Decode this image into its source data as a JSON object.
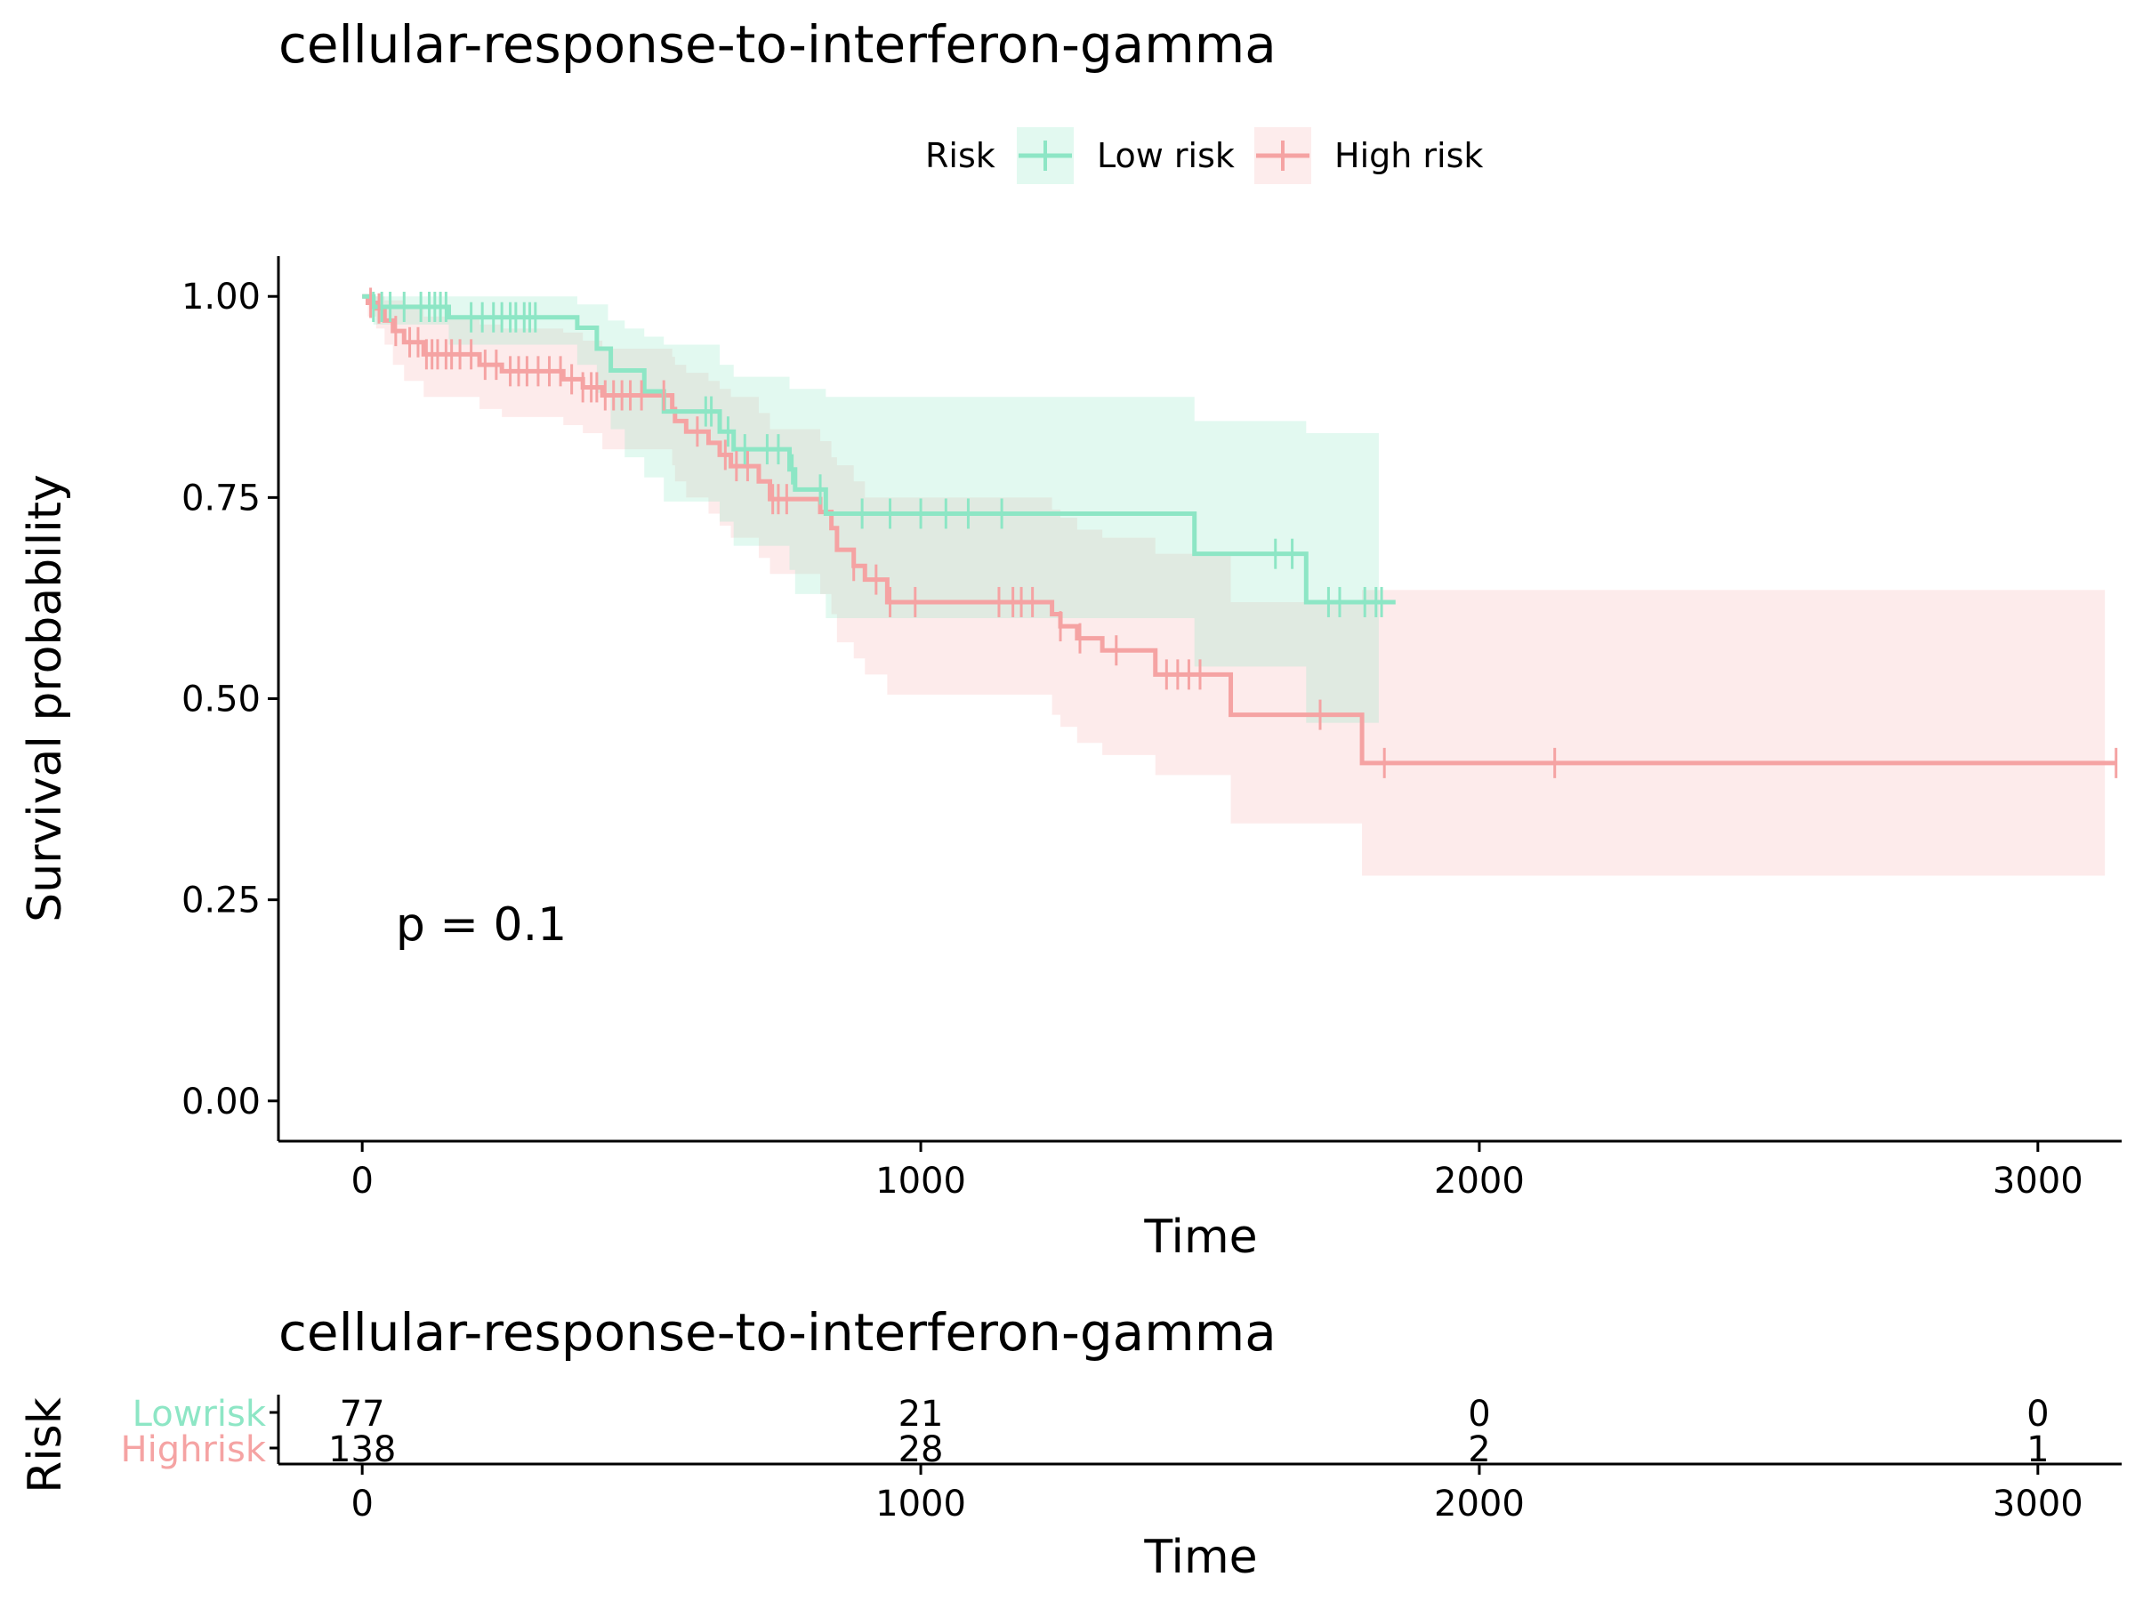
{
  "chart_data": [
    {
      "type": "line",
      "subtype": "kaplan-meier",
      "title": "cellular-response-to-interferon-gamma",
      "xlabel": "Time",
      "ylabel": "Survival probability",
      "xlim": [
        -150,
        3150
      ],
      "ylim": [
        -0.05,
        1.05
      ],
      "xticks": [
        0,
        1000,
        2000,
        3000
      ],
      "yticks": [
        "0.00",
        "0.25",
        "0.50",
        "0.75",
        "1.00"
      ],
      "grid": false,
      "legend": {
        "title": "Risk",
        "placement": "top",
        "entries": [
          "Low risk",
          "High risk"
        ]
      },
      "annotation": "p = 0.1",
      "annotation_pos": [
        60,
        0.2
      ],
      "series": [
        {
          "name": "Low risk",
          "color": "#8DE6C5",
          "band_color": "#8DE6C5",
          "steps": [
            [
              0,
              1.0
            ],
            [
              20,
              0.987
            ],
            [
              155,
              0.974
            ],
            [
              385,
              0.961
            ],
            [
              420,
              0.935
            ],
            [
              445,
              0.908
            ],
            [
              505,
              0.882
            ],
            [
              540,
              0.857
            ],
            [
              640,
              0.832
            ],
            [
              665,
              0.81
            ],
            [
              765,
              0.785
            ],
            [
              775,
              0.76
            ],
            [
              830,
              0.73
            ],
            [
              1490,
              0.68
            ],
            [
              1690,
              0.62
            ],
            [
              1850,
              0.62
            ]
          ],
          "lower": [
            [
              0,
              1.0
            ],
            [
              20,
              0.965
            ],
            [
              155,
              0.94
            ],
            [
              385,
              0.915
            ],
            [
              420,
              0.88
            ],
            [
              445,
              0.835
            ],
            [
              470,
              0.8
            ],
            [
              505,
              0.775
            ],
            [
              540,
              0.745
            ],
            [
              640,
              0.72
            ],
            [
              665,
              0.69
            ],
            [
              765,
              0.66
            ],
            [
              775,
              0.63
            ],
            [
              830,
              0.6
            ],
            [
              1490,
              0.54
            ],
            [
              1690,
              0.47
            ],
            [
              1820,
              0.47
            ]
          ],
          "upper": [
            [
              0,
              1.0
            ],
            [
              155,
              1.0
            ],
            [
              385,
              0.99
            ],
            [
              440,
              0.97
            ],
            [
              470,
              0.96
            ],
            [
              505,
              0.95
            ],
            [
              540,
              0.94
            ],
            [
              640,
              0.915
            ],
            [
              665,
              0.9
            ],
            [
              765,
              0.885
            ],
            [
              830,
              0.875
            ],
            [
              1490,
              0.845
            ],
            [
              1690,
              0.83
            ],
            [
              1820,
              0.83
            ]
          ],
          "censor_times": [
            20,
            35,
            50,
            75,
            105,
            120,
            130,
            140,
            150,
            195,
            215,
            235,
            250,
            265,
            275,
            290,
            300,
            310,
            615,
            625,
            655,
            685,
            725,
            745,
            770,
            820,
            895,
            945,
            1000,
            1045,
            1085,
            1145,
            1635,
            1665,
            1730,
            1750,
            1795,
            1815,
            1825
          ]
        },
        {
          "name": "High risk",
          "color": "#F5A3A3",
          "band_color": "#F9C1C1",
          "steps": [
            [
              0,
              1.0
            ],
            [
              10,
              0.992
            ],
            [
              25,
              0.985
            ],
            [
              40,
              0.97
            ],
            [
              55,
              0.957
            ],
            [
              75,
              0.943
            ],
            [
              110,
              0.928
            ],
            [
              210,
              0.915
            ],
            [
              250,
              0.907
            ],
            [
              360,
              0.897
            ],
            [
              395,
              0.887
            ],
            [
              430,
              0.877
            ],
            [
              555,
              0.86
            ],
            [
              560,
              0.845
            ],
            [
              580,
              0.832
            ],
            [
              620,
              0.818
            ],
            [
              640,
              0.803
            ],
            [
              660,
              0.789
            ],
            [
              710,
              0.77
            ],
            [
              730,
              0.748
            ],
            [
              820,
              0.732
            ],
            [
              840,
              0.712
            ],
            [
              850,
              0.685
            ],
            [
              880,
              0.665
            ],
            [
              900,
              0.648
            ],
            [
              940,
              0.62
            ],
            [
              1235,
              0.605
            ],
            [
              1250,
              0.59
            ],
            [
              1280,
              0.575
            ],
            [
              1325,
              0.56
            ],
            [
              1420,
              0.53
            ],
            [
              1555,
              0.48
            ],
            [
              1790,
              0.42
            ],
            [
              3140,
              0.42
            ]
          ],
          "lower": [
            [
              0,
              1.0
            ],
            [
              10,
              0.975
            ],
            [
              25,
              0.96
            ],
            [
              40,
              0.94
            ],
            [
              55,
              0.915
            ],
            [
              75,
              0.895
            ],
            [
              110,
              0.875
            ],
            [
              210,
              0.86
            ],
            [
              250,
              0.85
            ],
            [
              360,
              0.84
            ],
            [
              395,
              0.83
            ],
            [
              430,
              0.81
            ],
            [
              555,
              0.79
            ],
            [
              560,
              0.77
            ],
            [
              580,
              0.75
            ],
            [
              620,
              0.73
            ],
            [
              640,
              0.715
            ],
            [
              660,
              0.7
            ],
            [
              710,
              0.675
            ],
            [
              730,
              0.655
            ],
            [
              820,
              0.63
            ],
            [
              840,
              0.605
            ],
            [
              850,
              0.57
            ],
            [
              880,
              0.55
            ],
            [
              900,
              0.53
            ],
            [
              940,
              0.505
            ],
            [
              1235,
              0.48
            ],
            [
              1250,
              0.465
            ],
            [
              1280,
              0.445
            ],
            [
              1325,
              0.43
            ],
            [
              1420,
              0.405
            ],
            [
              1555,
              0.345
            ],
            [
              1790,
              0.28
            ],
            [
              3120,
              0.28
            ]
          ],
          "upper": [
            [
              0,
              1.0
            ],
            [
              40,
              0.995
            ],
            [
              75,
              0.99
            ],
            [
              110,
              0.975
            ],
            [
              210,
              0.965
            ],
            [
              250,
              0.96
            ],
            [
              360,
              0.955
            ],
            [
              395,
              0.945
            ],
            [
              430,
              0.935
            ],
            [
              555,
              0.925
            ],
            [
              560,
              0.915
            ],
            [
              580,
              0.905
            ],
            [
              620,
              0.895
            ],
            [
              640,
              0.885
            ],
            [
              660,
              0.875
            ],
            [
              710,
              0.855
            ],
            [
              730,
              0.835
            ],
            [
              820,
              0.82
            ],
            [
              840,
              0.8
            ],
            [
              850,
              0.79
            ],
            [
              880,
              0.77
            ],
            [
              900,
              0.75
            ],
            [
              1235,
              0.735
            ],
            [
              1250,
              0.725
            ],
            [
              1280,
              0.71
            ],
            [
              1325,
              0.7
            ],
            [
              1420,
              0.68
            ],
            [
              1555,
              0.62
            ],
            [
              1790,
              0.635
            ],
            [
              3120,
              0.635
            ]
          ],
          "censor_times": [
            15,
            30,
            60,
            85,
            100,
            115,
            125,
            135,
            150,
            160,
            175,
            195,
            220,
            240,
            265,
            280,
            295,
            315,
            335,
            355,
            375,
            395,
            410,
            420,
            435,
            450,
            465,
            480,
            500,
            540,
            600,
            650,
            670,
            690,
            735,
            745,
            760,
            880,
            920,
            945,
            990,
            1140,
            1165,
            1180,
            1200,
            1250,
            1285,
            1350,
            1440,
            1460,
            1480,
            1500,
            1715,
            1830,
            2135,
            3140
          ]
        }
      ]
    },
    {
      "type": "table",
      "title": "cellular-response-to-interferon-gamma",
      "xlabel": "Time",
      "ylabel": "Risk",
      "xlim": [
        -150,
        3150
      ],
      "xticks": [
        0,
        1000,
        2000,
        3000
      ],
      "rows": [
        {
          "name": "Lowrisk",
          "color": "#8DE6C5",
          "values": [
            "77",
            "21",
            "0",
            "0"
          ]
        },
        {
          "name": "Highrisk",
          "color": "#F5A3A3",
          "values": [
            "138",
            "28",
            "2",
            "1"
          ]
        }
      ]
    }
  ]
}
